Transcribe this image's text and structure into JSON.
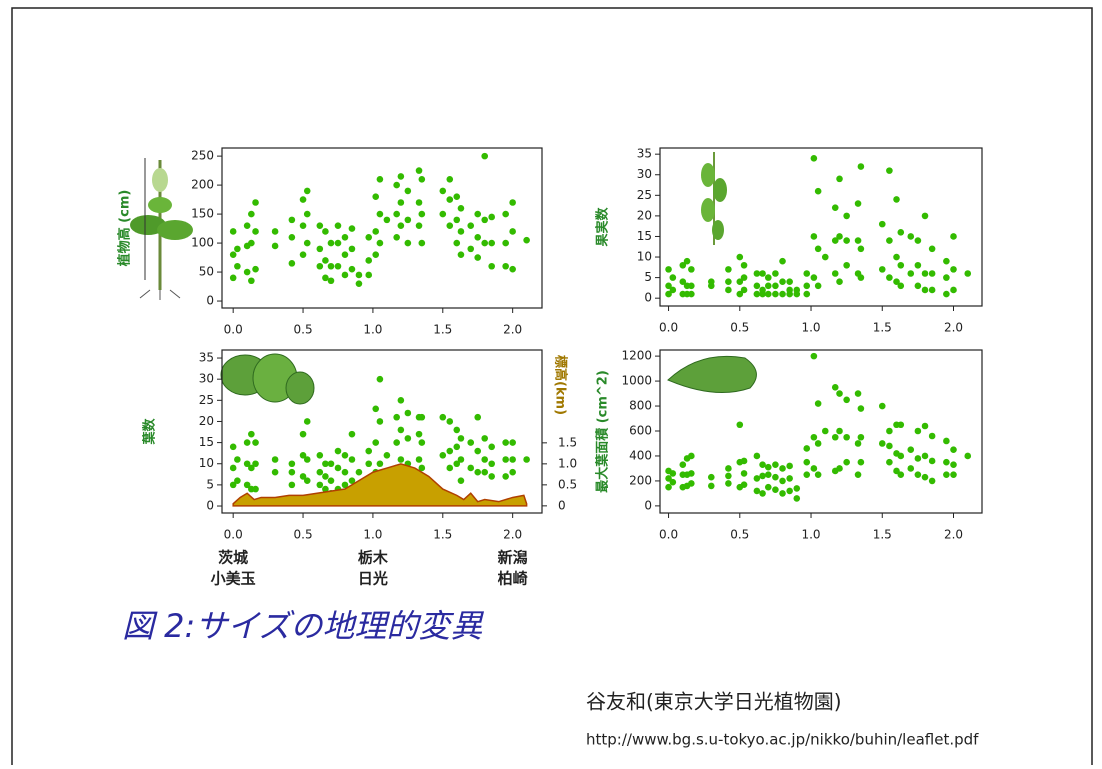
{
  "chart_data": [
    {
      "type": "scatter",
      "ylabel": "植物高 (cm)",
      "xlim": [
        -0.08,
        2.21
      ],
      "ylim": [
        -12,
        264
      ],
      "xticks": [
        {
          "value": 0,
          "label": "0.0"
        },
        0.5,
        {
          "value": 1,
          "label": "1.0"
        },
        1.5,
        {
          "value": 2,
          "label": "2.0"
        }
      ],
      "yticks": [
        0,
        50,
        100,
        150,
        200,
        250
      ],
      "series": [
        {
          "color": "#33bb00",
          "x": [
            0,
            0,
            0,
            0.03,
            0.03,
            0.1,
            0.1,
            0.1,
            0.13,
            0.13,
            0.13,
            0.16,
            0.16,
            0.16,
            0.3,
            0.3,
            0.42,
            0.42,
            0.42,
            0.5,
            0.5,
            0.5,
            0.53,
            0.53,
            0.53,
            0.62,
            0.62,
            0.62,
            0.66,
            0.66,
            0.66,
            0.7,
            0.7,
            0.7,
            0.75,
            0.75,
            0.75,
            0.8,
            0.8,
            0.8,
            0.85,
            0.85,
            0.85,
            0.9,
            0.9,
            0.97,
            0.97,
            0.97,
            1.02,
            1.02,
            1.02,
            1.05,
            1.05,
            1.05,
            1.1,
            1.17,
            1.17,
            1.17,
            1.2,
            1.2,
            1.2,
            1.25,
            1.25,
            1.25,
            1.33,
            1.33,
            1.33,
            1.35,
            1.35,
            1.35,
            1.5,
            1.5,
            1.55,
            1.55,
            1.55,
            1.6,
            1.6,
            1.6,
            1.63,
            1.63,
            1.63,
            1.7,
            1.7,
            1.75,
            1.75,
            1.75,
            1.8,
            1.8,
            1.8,
            1.85,
            1.85,
            1.85,
            1.95,
            1.95,
            1.95,
            2.0,
            2.0,
            2.0,
            2.1
          ],
          "values": [
            40,
            80,
            120,
            60,
            90,
            50,
            95,
            130,
            35,
            100,
            150,
            55,
            120,
            170,
            95,
            120,
            65,
            110,
            140,
            80,
            130,
            175,
            100,
            150,
            190,
            60,
            90,
            130,
            40,
            70,
            120,
            35,
            60,
            100,
            60,
            100,
            130,
            45,
            80,
            110,
            55,
            90,
            125,
            30,
            45,
            45,
            70,
            110,
            80,
            120,
            180,
            100,
            150,
            210,
            140,
            110,
            150,
            200,
            130,
            170,
            215,
            100,
            140,
            190,
            130,
            170,
            225,
            100,
            150,
            210,
            150,
            190,
            130,
            175,
            210,
            100,
            140,
            180,
            80,
            120,
            160,
            90,
            130,
            75,
            110,
            150,
            100,
            140,
            250,
            60,
            100,
            145,
            60,
            100,
            150,
            55,
            120,
            170,
            105
          ]
        }
      ]
    },
    {
      "type": "scatter",
      "ylabel": "果実数",
      "xlim": [
        -0.06,
        2.2
      ],
      "ylim": [
        -1.9,
        36.5
      ],
      "xticks": [
        {
          "value": 0,
          "label": "0.0"
        },
        0.5,
        {
          "value": 1,
          "label": "1.0"
        },
        1.5,
        {
          "value": 2,
          "label": "2.0"
        }
      ],
      "yticks": [
        0,
        5,
        10,
        15,
        20,
        25,
        30,
        35
      ],
      "series": [
        {
          "color": "#33bb00",
          "x": [
            0,
            0,
            0,
            0.03,
            0.03,
            0.1,
            0.1,
            0.1,
            0.13,
            0.13,
            0.13,
            0.16,
            0.16,
            0.16,
            0.3,
            0.3,
            0.42,
            0.42,
            0.42,
            0.5,
            0.5,
            0.5,
            0.53,
            0.53,
            0.53,
            0.62,
            0.62,
            0.62,
            0.66,
            0.66,
            0.66,
            0.7,
            0.7,
            0.7,
            0.75,
            0.75,
            0.75,
            0.8,
            0.8,
            0.8,
            0.85,
            0.85,
            0.85,
            0.9,
            0.9,
            0.97,
            0.97,
            0.97,
            1.02,
            1.02,
            1.02,
            1.05,
            1.05,
            1.05,
            1.1,
            1.17,
            1.17,
            1.17,
            1.2,
            1.2,
            1.2,
            1.25,
            1.25,
            1.25,
            1.33,
            1.33,
            1.33,
            1.35,
            1.35,
            1.35,
            1.5,
            1.5,
            1.55,
            1.55,
            1.55,
            1.6,
            1.6,
            1.6,
            1.63,
            1.63,
            1.63,
            1.7,
            1.7,
            1.75,
            1.75,
            1.75,
            1.8,
            1.8,
            1.8,
            1.85,
            1.85,
            1.85,
            1.95,
            1.95,
            1.95,
            2.0,
            2.0,
            2.0,
            2.1
          ],
          "values": [
            1,
            3,
            7,
            2,
            5,
            1,
            4,
            8,
            1,
            3,
            9,
            1,
            3,
            7,
            3,
            4,
            2,
            4,
            7,
            1,
            4,
            10,
            2,
            5,
            8,
            1,
            3,
            6,
            1,
            2,
            6,
            1,
            3,
            5,
            1,
            3,
            6,
            1,
            4,
            9,
            1,
            2,
            4,
            1,
            2,
            1,
            3,
            6,
            5,
            15,
            34,
            3,
            12,
            26,
            10,
            6,
            14,
            22,
            4,
            15,
            29,
            8,
            14,
            20,
            6,
            14,
            23,
            5,
            12,
            32,
            7,
            18,
            5,
            14,
            31,
            4,
            10,
            24,
            3,
            8,
            16,
            6,
            15,
            3,
            8,
            14,
            2,
            6,
            20,
            2,
            6,
            12,
            1,
            5,
            9,
            2,
            7,
            15,
            6
          ]
        }
      ]
    },
    {
      "type": "scatter",
      "ylabel": "葉数",
      "y2label": "標高(km)",
      "xlim": [
        -0.08,
        2.21
      ],
      "ylim": [
        -1.65,
        36.9
      ],
      "y2lim": [
        -0.17,
        3.71
      ],
      "xticks": [
        {
          "value": 0,
          "label": "0.0"
        },
        0.5,
        {
          "value": 1,
          "label": "1.0"
        },
        1.5,
        {
          "value": 2,
          "label": "2.0"
        }
      ],
      "yticks": [
        0,
        5,
        10,
        15,
        20,
        25,
        30,
        35
      ],
      "y2ticks": [
        0,
        0.5,
        {
          "value": 1,
          "label": "1.0"
        },
        1.5
      ],
      "x_annotations": [
        {
          "x": 0,
          "label": [
            "茨城",
            "小美玉"
          ]
        },
        {
          "x": 1,
          "label": [
            "栃木",
            "日光"
          ]
        },
        {
          "x": 2,
          "label": [
            "新潟",
            "柏崎"
          ]
        }
      ],
      "series": [
        {
          "color": "#33bb00",
          "x": [
            0,
            0,
            0,
            0.03,
            0.03,
            0.1,
            0.1,
            0.1,
            0.13,
            0.13,
            0.13,
            0.16,
            0.16,
            0.16,
            0.3,
            0.3,
            0.42,
            0.42,
            0.42,
            0.5,
            0.5,
            0.5,
            0.53,
            0.53,
            0.53,
            0.62,
            0.62,
            0.62,
            0.66,
            0.66,
            0.66,
            0.7,
            0.7,
            0.7,
            0.75,
            0.75,
            0.75,
            0.8,
            0.8,
            0.8,
            0.85,
            0.85,
            0.85,
            0.9,
            0.9,
            0.97,
            0.97,
            0.97,
            1.02,
            1.02,
            1.02,
            1.05,
            1.05,
            1.05,
            1.1,
            1.17,
            1.17,
            1.17,
            1.2,
            1.2,
            1.2,
            1.25,
            1.25,
            1.25,
            1.33,
            1.33,
            1.33,
            1.35,
            1.35,
            1.35,
            1.5,
            1.5,
            1.55,
            1.55,
            1.55,
            1.6,
            1.6,
            1.6,
            1.63,
            1.63,
            1.63,
            1.7,
            1.7,
            1.75,
            1.75,
            1.75,
            1.8,
            1.8,
            1.8,
            1.85,
            1.85,
            1.85,
            1.95,
            1.95,
            1.95,
            2.0,
            2.0,
            2.0,
            2.1
          ],
          "values": [
            5,
            9,
            14,
            6,
            11,
            5,
            10,
            15,
            4,
            9,
            17,
            4,
            10,
            15,
            8,
            11,
            5,
            8,
            10,
            7,
            12,
            17,
            6,
            11,
            20,
            5,
            8,
            12,
            4,
            7,
            10,
            3,
            6,
            10,
            4,
            9,
            13,
            5,
            8,
            12,
            6,
            11,
            17,
            5,
            8,
            6,
            10,
            13,
            8,
            15,
            23,
            10,
            20,
            30,
            12,
            9,
            15,
            21,
            11,
            18,
            25,
            10,
            16,
            22,
            11,
            17,
            21,
            9,
            15,
            21,
            12,
            21,
            9,
            13,
            20,
            10,
            14,
            18,
            6,
            11,
            16,
            9,
            15,
            8,
            13,
            21,
            8,
            11,
            16,
            7,
            10,
            14,
            7,
            11,
            15,
            8,
            11,
            15,
            11
          ]
        },
        {
          "type": "area",
          "axis": "y2",
          "color": "#c8a000",
          "x": [
            0,
            0.05,
            0.1,
            0.15,
            0.2,
            0.3,
            0.4,
            0.5,
            0.6,
            0.7,
            0.8,
            0.9,
            1.0,
            1.05,
            1.1,
            1.2,
            1.25,
            1.3,
            1.4,
            1.5,
            1.6,
            1.65,
            1.7,
            1.75,
            1.8,
            1.9,
            2.0,
            2.08,
            2.1
          ],
          "values": [
            0.05,
            0.2,
            0.3,
            0.15,
            0.2,
            0.2,
            0.25,
            0.25,
            0.3,
            0.35,
            0.4,
            0.6,
            0.8,
            0.85,
            0.9,
            1.0,
            0.95,
            0.9,
            0.7,
            0.4,
            0.25,
            0.15,
            0.3,
            0.1,
            0.15,
            0.1,
            0.2,
            0.25,
            0.05
          ]
        }
      ]
    },
    {
      "type": "scatter",
      "ylabel": "最大葉面積 (cm^2)",
      "xlim": [
        -0.06,
        2.2
      ],
      "ylim": [
        -57,
        1249
      ],
      "xticks": [
        {
          "value": 0,
          "label": "0.0"
        },
        0.5,
        {
          "value": 1,
          "label": "1.0"
        },
        1.5,
        {
          "value": 2,
          "label": "2.0"
        }
      ],
      "yticks": [
        0,
        200,
        400,
        600,
        800,
        1000,
        1200
      ],
      "series": [
        {
          "color": "#33bb00",
          "x": [
            0,
            0,
            0,
            0.03,
            0.03,
            0.1,
            0.1,
            0.1,
            0.13,
            0.13,
            0.13,
            0.16,
            0.16,
            0.16,
            0.3,
            0.3,
            0.42,
            0.42,
            0.42,
            0.5,
            0.5,
            0.5,
            0.53,
            0.53,
            0.53,
            0.62,
            0.62,
            0.62,
            0.66,
            0.66,
            0.66,
            0.7,
            0.7,
            0.7,
            0.75,
            0.75,
            0.75,
            0.8,
            0.8,
            0.8,
            0.85,
            0.85,
            0.85,
            0.9,
            0.9,
            0.97,
            0.97,
            0.97,
            1.02,
            1.02,
            1.02,
            1.05,
            1.05,
            1.05,
            1.1,
            1.17,
            1.17,
            1.17,
            1.2,
            1.2,
            1.2,
            1.25,
            1.25,
            1.25,
            1.33,
            1.33,
            1.33,
            1.35,
            1.35,
            1.35,
            1.5,
            1.5,
            1.55,
            1.55,
            1.55,
            1.6,
            1.6,
            1.6,
            1.63,
            1.63,
            1.63,
            1.7,
            1.7,
            1.75,
            1.75,
            1.75,
            1.8,
            1.8,
            1.8,
            1.85,
            1.85,
            1.85,
            1.95,
            1.95,
            1.95,
            2.0,
            2.0,
            2.0,
            2.1
          ],
          "values": [
            150,
            220,
            280,
            190,
            260,
            150,
            250,
            330,
            160,
            250,
            380,
            180,
            260,
            400,
            160,
            230,
            180,
            240,
            300,
            150,
            350,
            650,
            170,
            260,
            360,
            120,
            220,
            400,
            100,
            240,
            330,
            150,
            250,
            310,
            130,
            230,
            330,
            100,
            200,
            300,
            120,
            220,
            320,
            60,
            140,
            250,
            350,
            460,
            300,
            550,
            1200,
            250,
            500,
            820,
            600,
            280,
            550,
            950,
            300,
            600,
            900,
            350,
            550,
            850,
            250,
            500,
            900,
            350,
            550,
            780,
            500,
            800,
            350,
            480,
            600,
            280,
            420,
            650,
            250,
            400,
            650,
            300,
            450,
            250,
            380,
            600,
            230,
            400,
            640,
            200,
            360,
            560,
            250,
            350,
            520,
            250,
            330,
            450,
            400
          ]
        }
      ]
    }
  ],
  "caption": "図 2:サイズの地理的変異",
  "author": "谷友和(東京大学日光植物園)",
  "url": "http://www.bg.s.u-tokyo.ac.jp/nikko/buhin/leaflet.pdf"
}
